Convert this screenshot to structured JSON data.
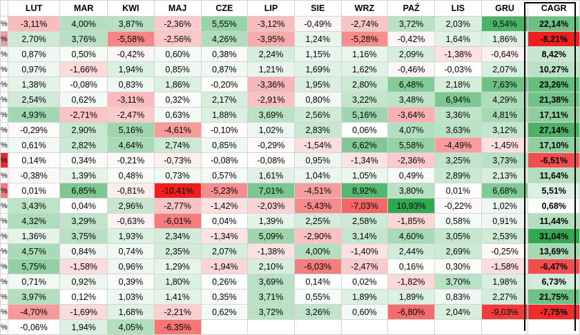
{
  "header": {
    "columns": [
      "",
      "LUT",
      "MAR",
      "KWI",
      "MAJ",
      "CZE",
      "LIP",
      "SIE",
      "WRZ",
      "PAŹ",
      "LIS",
      "GRU",
      "CAGR"
    ]
  },
  "rows": [
    [
      "%",
      "-3,11%",
      "4,00%",
      "3,87%",
      "-2,36%",
      "5,55%",
      "-3,12%",
      "-0,49%",
      "-2,74%",
      "3,72%",
      "2,03%",
      "9,54%",
      "22,14%"
    ],
    [
      "%",
      "2,70%",
      "3,76%",
      "-5,58%",
      "-2,56%",
      "4,26%",
      "-3,95%",
      "1,24%",
      "-5,28%",
      "-0,42%",
      "1,64%",
      "1,86%",
      "-8,21%"
    ],
    [
      "%",
      "0,87%",
      "0,50%",
      "-0,42%",
      "0,60%",
      "0,38%",
      "2,24%",
      "1,15%",
      "1,16%",
      "2,09%",
      "-1,38%",
      "-0,64%",
      "8,42%"
    ],
    [
      "%",
      "0,97%",
      "-1,66%",
      "1,94%",
      "0,85%",
      "0,87%",
      "1,21%",
      "1,69%",
      "1,62%",
      "-0,46%",
      "-0,03%",
      "2,07%",
      "10,27%"
    ],
    [
      "%",
      "1,38%",
      "-0,08%",
      "0,83%",
      "1,86%",
      "-0,20%",
      "-3,36%",
      "1,95%",
      "2,80%",
      "6,48%",
      "2,18%",
      "7,63%",
      "23,26%"
    ],
    [
      "%",
      "2,54%",
      "0,62%",
      "-3,11%",
      "0,32%",
      "2,17%",
      "-2,91%",
      "0,80%",
      "3,22%",
      "3,48%",
      "6,94%",
      "4,29%",
      "21,38%"
    ],
    [
      "%",
      "4,93%",
      "-2,71%",
      "-2,47%",
      "0,63%",
      "1,88%",
      "3,69%",
      "2,56%",
      "5,16%",
      "-3,64%",
      "3,36%",
      "4,81%",
      "17,11%"
    ],
    [
      "%",
      "-0,29%",
      "2,90%",
      "5,16%",
      "-4,61%",
      "-0,10%",
      "1,02%",
      "2,83%",
      "0,06%",
      "4,07%",
      "3,63%",
      "3,12%",
      "27,14%"
    ],
    [
      "%",
      "0,61%",
      "2,82%",
      "4,64%",
      "2,74%",
      "0,85%",
      "-0,29%",
      "-1,54%",
      "6,62%",
      "5,58%",
      "-4,49%",
      "-1,45%",
      "17,10%"
    ],
    [
      "%",
      "0,14%",
      "0,34%",
      "-0,21%",
      "-0,73%",
      "-0,08%",
      "-0,08%",
      "0,95%",
      "-1,34%",
      "-2,36%",
      "3,25%",
      "3,73%",
      "-6,51%"
    ],
    [
      "%",
      "-0,38%",
      "1,39%",
      "0,48%",
      "0,73%",
      "0,57%",
      "1,61%",
      "1,04%",
      "1,05%",
      "0,49%",
      "2,89%",
      "2,13%",
      "11,64%"
    ],
    [
      "%",
      "0,01%",
      "6,85%",
      "-0,81%",
      "-10,41%",
      "-5,23%",
      "7,01%",
      "-4,51%",
      "8,92%",
      "3,80%",
      "0,01%",
      "6,68%",
      "5,51%"
    ],
    [
      "%",
      "3,43%",
      "0,04%",
      "2,96%",
      "-2,77%",
      "-1,42%",
      "-2,03%",
      "-5,43%",
      "-7,03%",
      "10,93%",
      "-0,22%",
      "1,02%",
      "0,68%"
    ],
    [
      "%",
      "4,32%",
      "3,29%",
      "-0,63%",
      "-6,01%",
      "0,04%",
      "1,39%",
      "2,25%",
      "2,58%",
      "-1,85%",
      "0,58%",
      "0,91%",
      "11,44%"
    ],
    [
      "%",
      "1,36%",
      "3,75%",
      "1,93%",
      "2,34%",
      "-1,34%",
      "5,09%",
      "-2,90%",
      "3,14%",
      "4,60%",
      "3,05%",
      "2,53%",
      "31,04%"
    ],
    [
      "%",
      "4,57%",
      "0,84%",
      "0,74%",
      "2,35%",
      "2,07%",
      "-1,38%",
      "4,00%",
      "-1,40%",
      "2,44%",
      "2,69%",
      "-0,25%",
      "13,69%"
    ],
    [
      "%",
      "5,75%",
      "-1,58%",
      "0,96%",
      "1,29%",
      "-1,94%",
      "2,10%",
      "-6,03%",
      "-2,47%",
      "0,16%",
      "0,30%",
      "-1,58%",
      "-6,47%"
    ],
    [
      "%",
      "0,71%",
      "0,92%",
      "0,39%",
      "1,80%",
      "0,26%",
      "3,69%",
      "0,14%",
      "0,02%",
      "-1,82%",
      "3,70%",
      "1,98%",
      "6,73%"
    ],
    [
      "%",
      "3,97%",
      "0,12%",
      "1,03%",
      "1,41%",
      "0,35%",
      "3,71%",
      "0,55%",
      "1,89%",
      "1,89%",
      "0,83%",
      "2,27%",
      "21,75%"
    ],
    [
      "%",
      "-4,70%",
      "-1,69%",
      "1,68%",
      "-2,21%",
      "0,62%",
      "3,72%",
      "3,26%",
      "0,60%",
      "-6,80%",
      "2,04%",
      "-9,03%",
      "-7,75%"
    ],
    [
      "%",
      "-0,06%",
      "1,94%",
      "4,05%",
      "-6,35%",
      "",
      "",
      "",
      "",
      "",
      "",
      "",
      ""
    ]
  ],
  "cut_cell_colors": [
    "#ffffff",
    "#e8a0a0",
    "#ffffff",
    "#ffffff",
    "#ffffff",
    "#ffffff",
    "#ffffff",
    "#ffffff",
    "#ffffff",
    "#ea2a2a",
    "#ffffff",
    "#f08080",
    "#ffffff",
    "#ffffff",
    "#ffffff",
    "#ffffff",
    "#ffffff",
    "#ffffff",
    "#ffffff",
    "#ffffff",
    "#ffffff"
  ]
}
